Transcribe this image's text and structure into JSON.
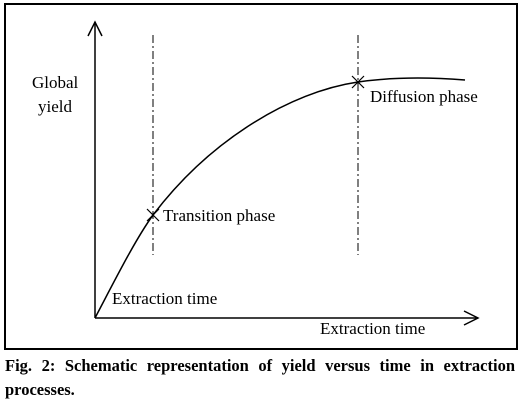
{
  "diagram": {
    "y_axis_label_line1": "Global",
    "y_axis_label_line2": "yield",
    "x_axis_label": "Extraction time",
    "origin_label": "Extraction time",
    "points": [
      {
        "label": "Transition phase"
      },
      {
        "label": "Diffusion phase"
      }
    ]
  },
  "caption": "Fig. 2: Schematic representation of yield versus time in extraction processes."
}
